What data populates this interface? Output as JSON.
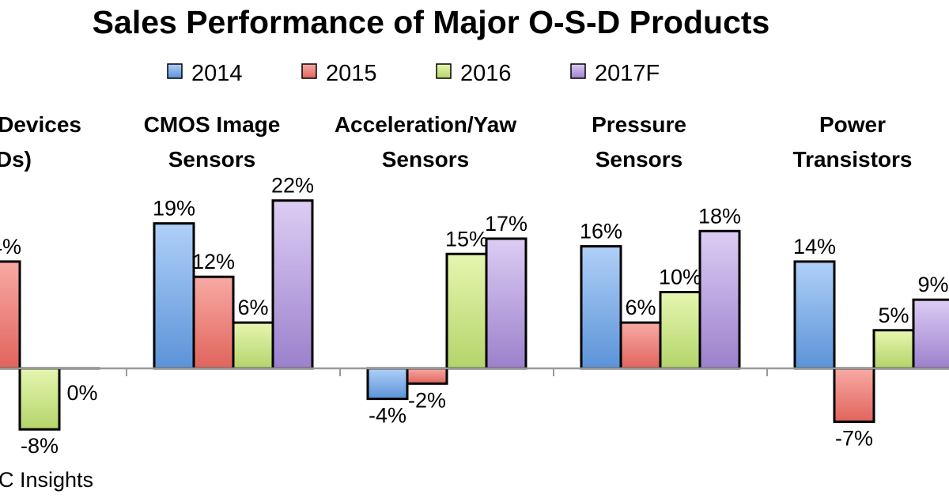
{
  "chart_data": {
    "type": "bar",
    "title": "Sales Performance of Major O-S-D Products",
    "legend_position": "top",
    "grid": false,
    "ylim": [
      -10,
      25
    ],
    "unit": "%",
    "categories": [
      {
        "lines": [
          "Devices",
          "Ds)"
        ]
      },
      {
        "lines": [
          "CMOS Image",
          "Sensors"
        ]
      },
      {
        "lines": [
          "Acceleration/Yaw",
          "Sensors"
        ]
      },
      {
        "lines": [
          "Pressure",
          "Sensors"
        ]
      },
      {
        "lines": [
          "Power",
          "Transistors"
        ]
      }
    ],
    "series": [
      {
        "name": "2014",
        "color": "#5b93d8",
        "values": [
          null,
          19,
          -4,
          16,
          14
        ]
      },
      {
        "name": "2015",
        "color": "#e0645c",
        "values": [
          14,
          12,
          -2,
          6,
          -7
        ]
      },
      {
        "name": "2016",
        "color": "#b4d46a",
        "values": [
          -8,
          6,
          15,
          10,
          5
        ]
      },
      {
        "name": "2017F",
        "color": "#9c80cc",
        "values": [
          0,
          22,
          17,
          18,
          9
        ]
      }
    ],
    "source": "C Insights"
  }
}
